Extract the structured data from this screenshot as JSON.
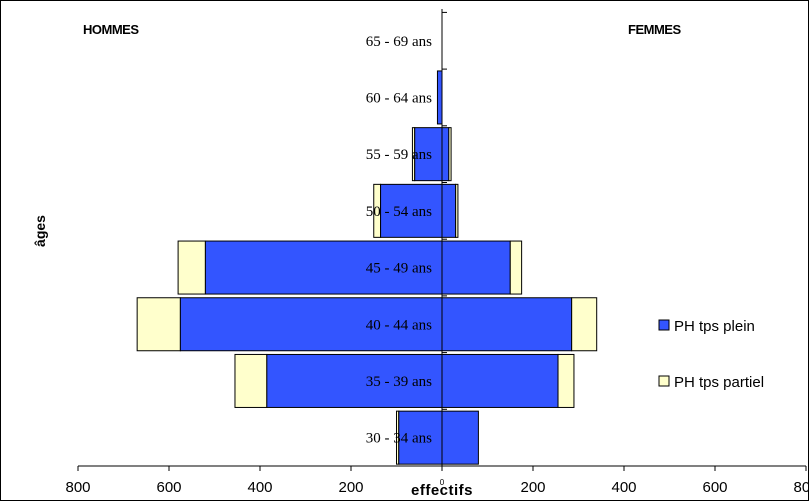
{
  "chart_data": {
    "type": "bar",
    "orientation": "horizontal-pyramid",
    "left_label": "HOMMES",
    "right_label": "FEMMES",
    "xlabel": "effectifs",
    "ylabel": "âges",
    "xlim": [
      -800,
      800
    ],
    "x_ticks": [
      "800",
      "600",
      "400",
      "200",
      "0",
      "200",
      "400",
      "600",
      "800"
    ],
    "categories": [
      "30 - 34 ans",
      "35 - 39 ans",
      "40 - 44 ans",
      "45 - 49 ans",
      "50 - 54 ans",
      "55 - 59 ans",
      "60 - 64 ans",
      "65 - 69 ans"
    ],
    "series": [
      {
        "name": "PH tps plein",
        "color": "#3355ff",
        "hommes": [
          95,
          385,
          575,
          520,
          135,
          60,
          10,
          0
        ],
        "femmes": [
          80,
          255,
          285,
          150,
          30,
          15,
          0,
          0
        ]
      },
      {
        "name": "PH tps partiel",
        "color": "#ffffcc",
        "hommes": [
          5,
          70,
          95,
          60,
          15,
          5,
          0,
          0
        ],
        "femmes": [
          0,
          35,
          55,
          25,
          5,
          5,
          0,
          0
        ]
      }
    ],
    "legend_position": "right"
  }
}
